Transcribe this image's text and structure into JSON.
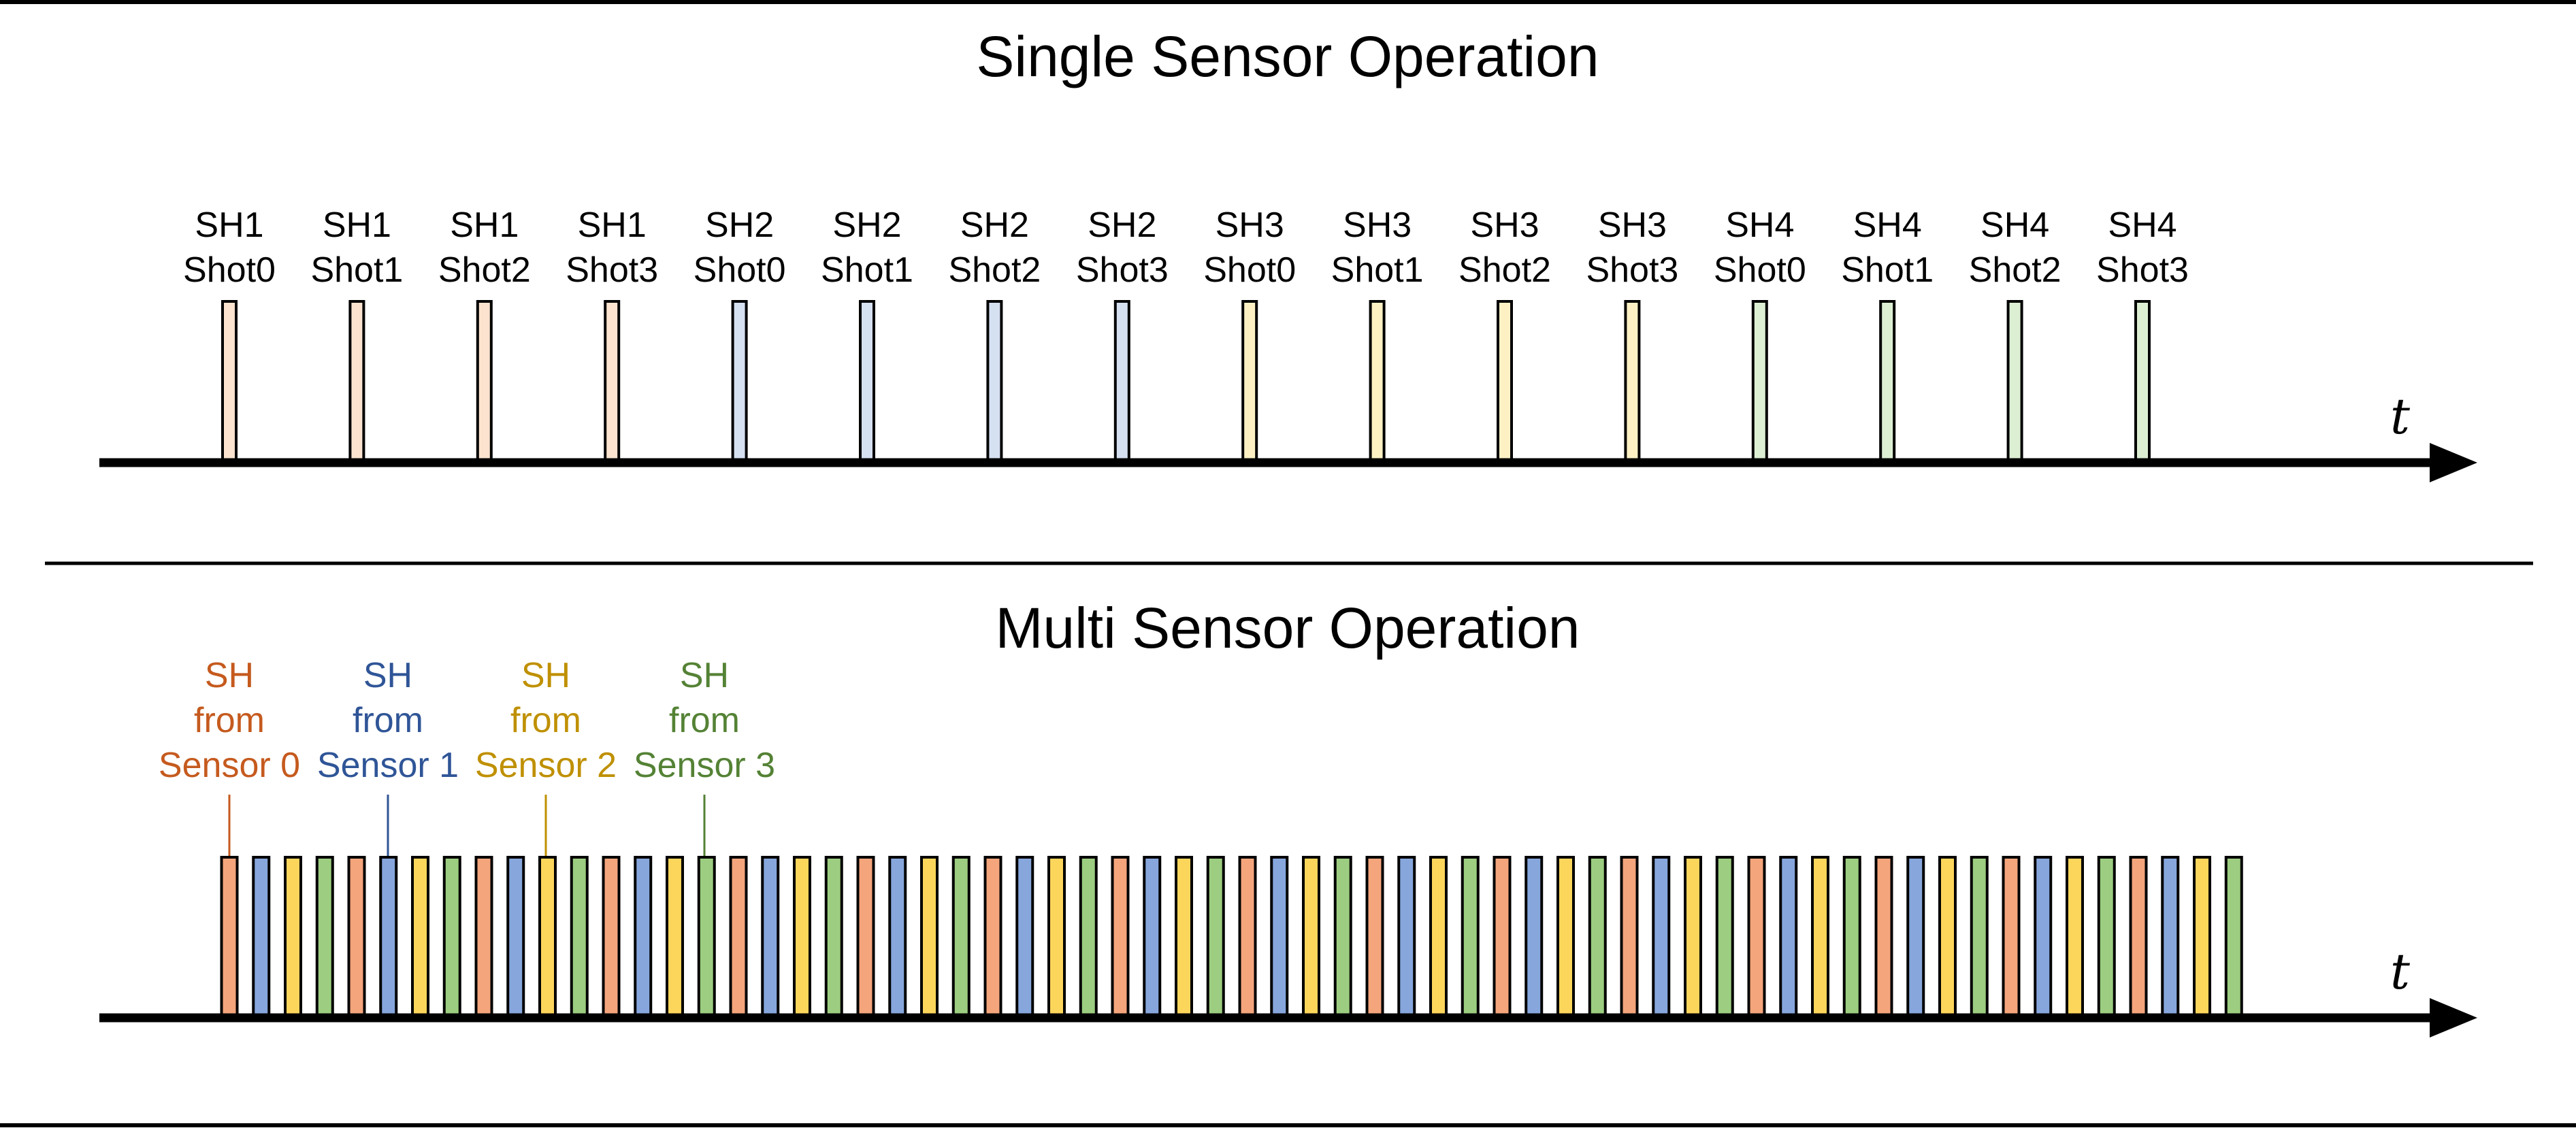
{
  "top_panel": {
    "title": "Single Sensor Operation",
    "axis_label": "t",
    "pulses": [
      {
        "line1": "SH1",
        "line2": "Shot0",
        "group": 0
      },
      {
        "line1": "SH1",
        "line2": "Shot1",
        "group": 0
      },
      {
        "line1": "SH1",
        "line2": "Shot2",
        "group": 0
      },
      {
        "line1": "SH1",
        "line2": "Shot3",
        "group": 0
      },
      {
        "line1": "SH2",
        "line2": "Shot0",
        "group": 1
      },
      {
        "line1": "SH2",
        "line2": "Shot1",
        "group": 1
      },
      {
        "line1": "SH2",
        "line2": "Shot2",
        "group": 1
      },
      {
        "line1": "SH2",
        "line2": "Shot3",
        "group": 1
      },
      {
        "line1": "SH3",
        "line2": "Shot0",
        "group": 2
      },
      {
        "line1": "SH3",
        "line2": "Shot1",
        "group": 2
      },
      {
        "line1": "SH3",
        "line2": "Shot2",
        "group": 2
      },
      {
        "line1": "SH3",
        "line2": "Shot3",
        "group": 2
      },
      {
        "line1": "SH4",
        "line2": "Shot0",
        "group": 3
      },
      {
        "line1": "SH4",
        "line2": "Shot1",
        "group": 3
      },
      {
        "line1": "SH4",
        "line2": "Shot2",
        "group": 3
      },
      {
        "line1": "SH4",
        "line2": "Shot3",
        "group": 3
      }
    ],
    "pale_colors": [
      "#fbe3cf",
      "#d5e0f1",
      "#fdf1c4",
      "#dcefd3"
    ]
  },
  "bottom_panel": {
    "title": "Multi Sensor Operation",
    "axis_label": "t",
    "pulse_count": 64,
    "sensor_colors": [
      "#f4a57c",
      "#86a6dc",
      "#fcd55b",
      "#9ccd80"
    ],
    "sensors": [
      {
        "line1": "SH",
        "line2": "from",
        "line3": "Sensor 0",
        "text_color": "#c55a1e"
      },
      {
        "line1": "SH",
        "line2": "from",
        "line3": "Sensor 1",
        "text_color": "#2f5597"
      },
      {
        "line1": "SH",
        "line2": "from",
        "line3": "Sensor 2",
        "text_color": "#bf9000"
      },
      {
        "line1": "SH",
        "line2": "from",
        "line3": "Sensor 3",
        "text_color": "#548235"
      }
    ]
  },
  "line_color": "#000000"
}
